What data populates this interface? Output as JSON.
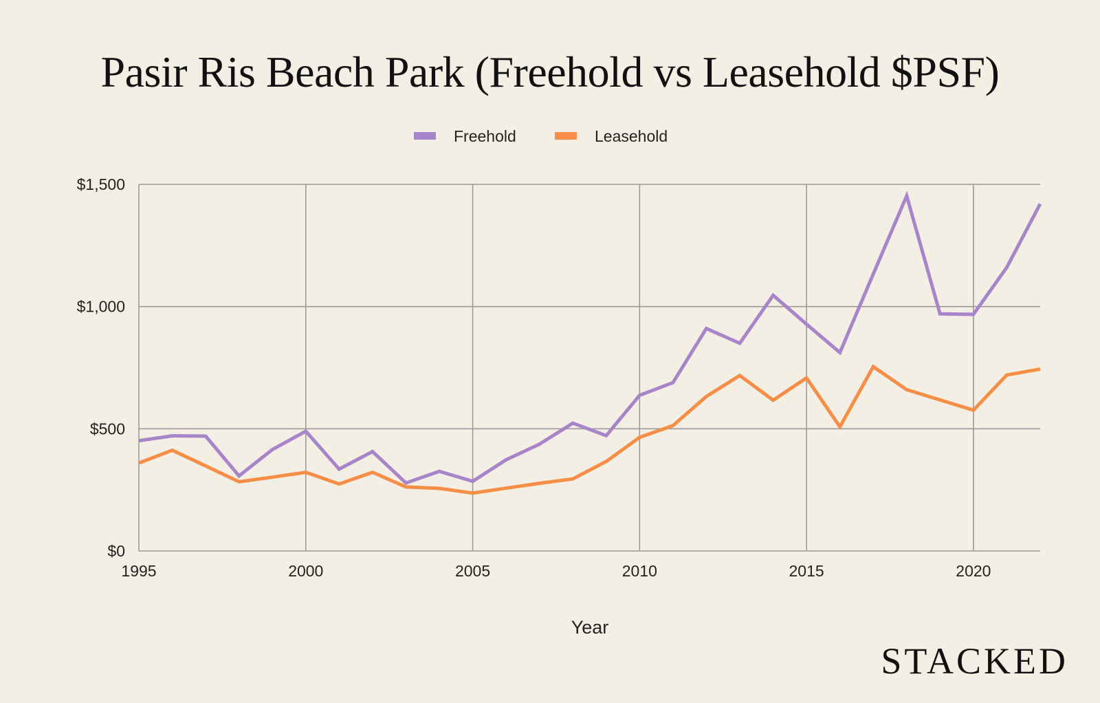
{
  "chart_data": {
    "type": "line",
    "title": "Pasir Ris Beach Park (Freehold vs Leasehold $PSF)",
    "xlabel": "Year",
    "ylabel": "",
    "xlim": [
      1995,
      2022
    ],
    "ylim": [
      0,
      1500
    ],
    "grid": true,
    "legend_position": "top-center",
    "x_ticks": [
      1995,
      2000,
      2005,
      2010,
      2015,
      2020
    ],
    "x_tick_labels": [
      "1995",
      "2000",
      "2005",
      "2010",
      "2015",
      "2020"
    ],
    "y_ticks": [
      0,
      500,
      1000,
      1500
    ],
    "y_tick_labels": [
      "$0",
      "$500",
      "$1,000",
      "$1,500"
    ],
    "x": [
      1995,
      1996,
      1997,
      1998,
      1999,
      2000,
      2001,
      2002,
      2003,
      2004,
      2005,
      2006,
      2007,
      2008,
      2009,
      2010,
      2011,
      2012,
      2013,
      2014,
      2015,
      2016,
      2017,
      2018,
      2019,
      2020,
      2021,
      2022
    ],
    "series": [
      {
        "name": "Freehold",
        "color": "#a884c9",
        "values": [
          451,
          471,
          470,
          307,
          415,
          490,
          335,
          407,
          278,
          326,
          285,
          373,
          437,
          523,
          472,
          637,
          689,
          910,
          850,
          1046,
          928,
          812,
          1133,
          1453,
          970,
          968,
          1160,
          1420
        ]
      },
      {
        "name": "Leasehold",
        "color": "#f78e48",
        "values": [
          360,
          412,
          348,
          283,
          302,
          322,
          274,
          322,
          262,
          256,
          237,
          257,
          277,
          295,
          366,
          465,
          513,
          632,
          718,
          617,
          708,
          508,
          754,
          660,
          618,
          576,
          720,
          744
        ]
      }
    ]
  },
  "brand": "STACKED"
}
